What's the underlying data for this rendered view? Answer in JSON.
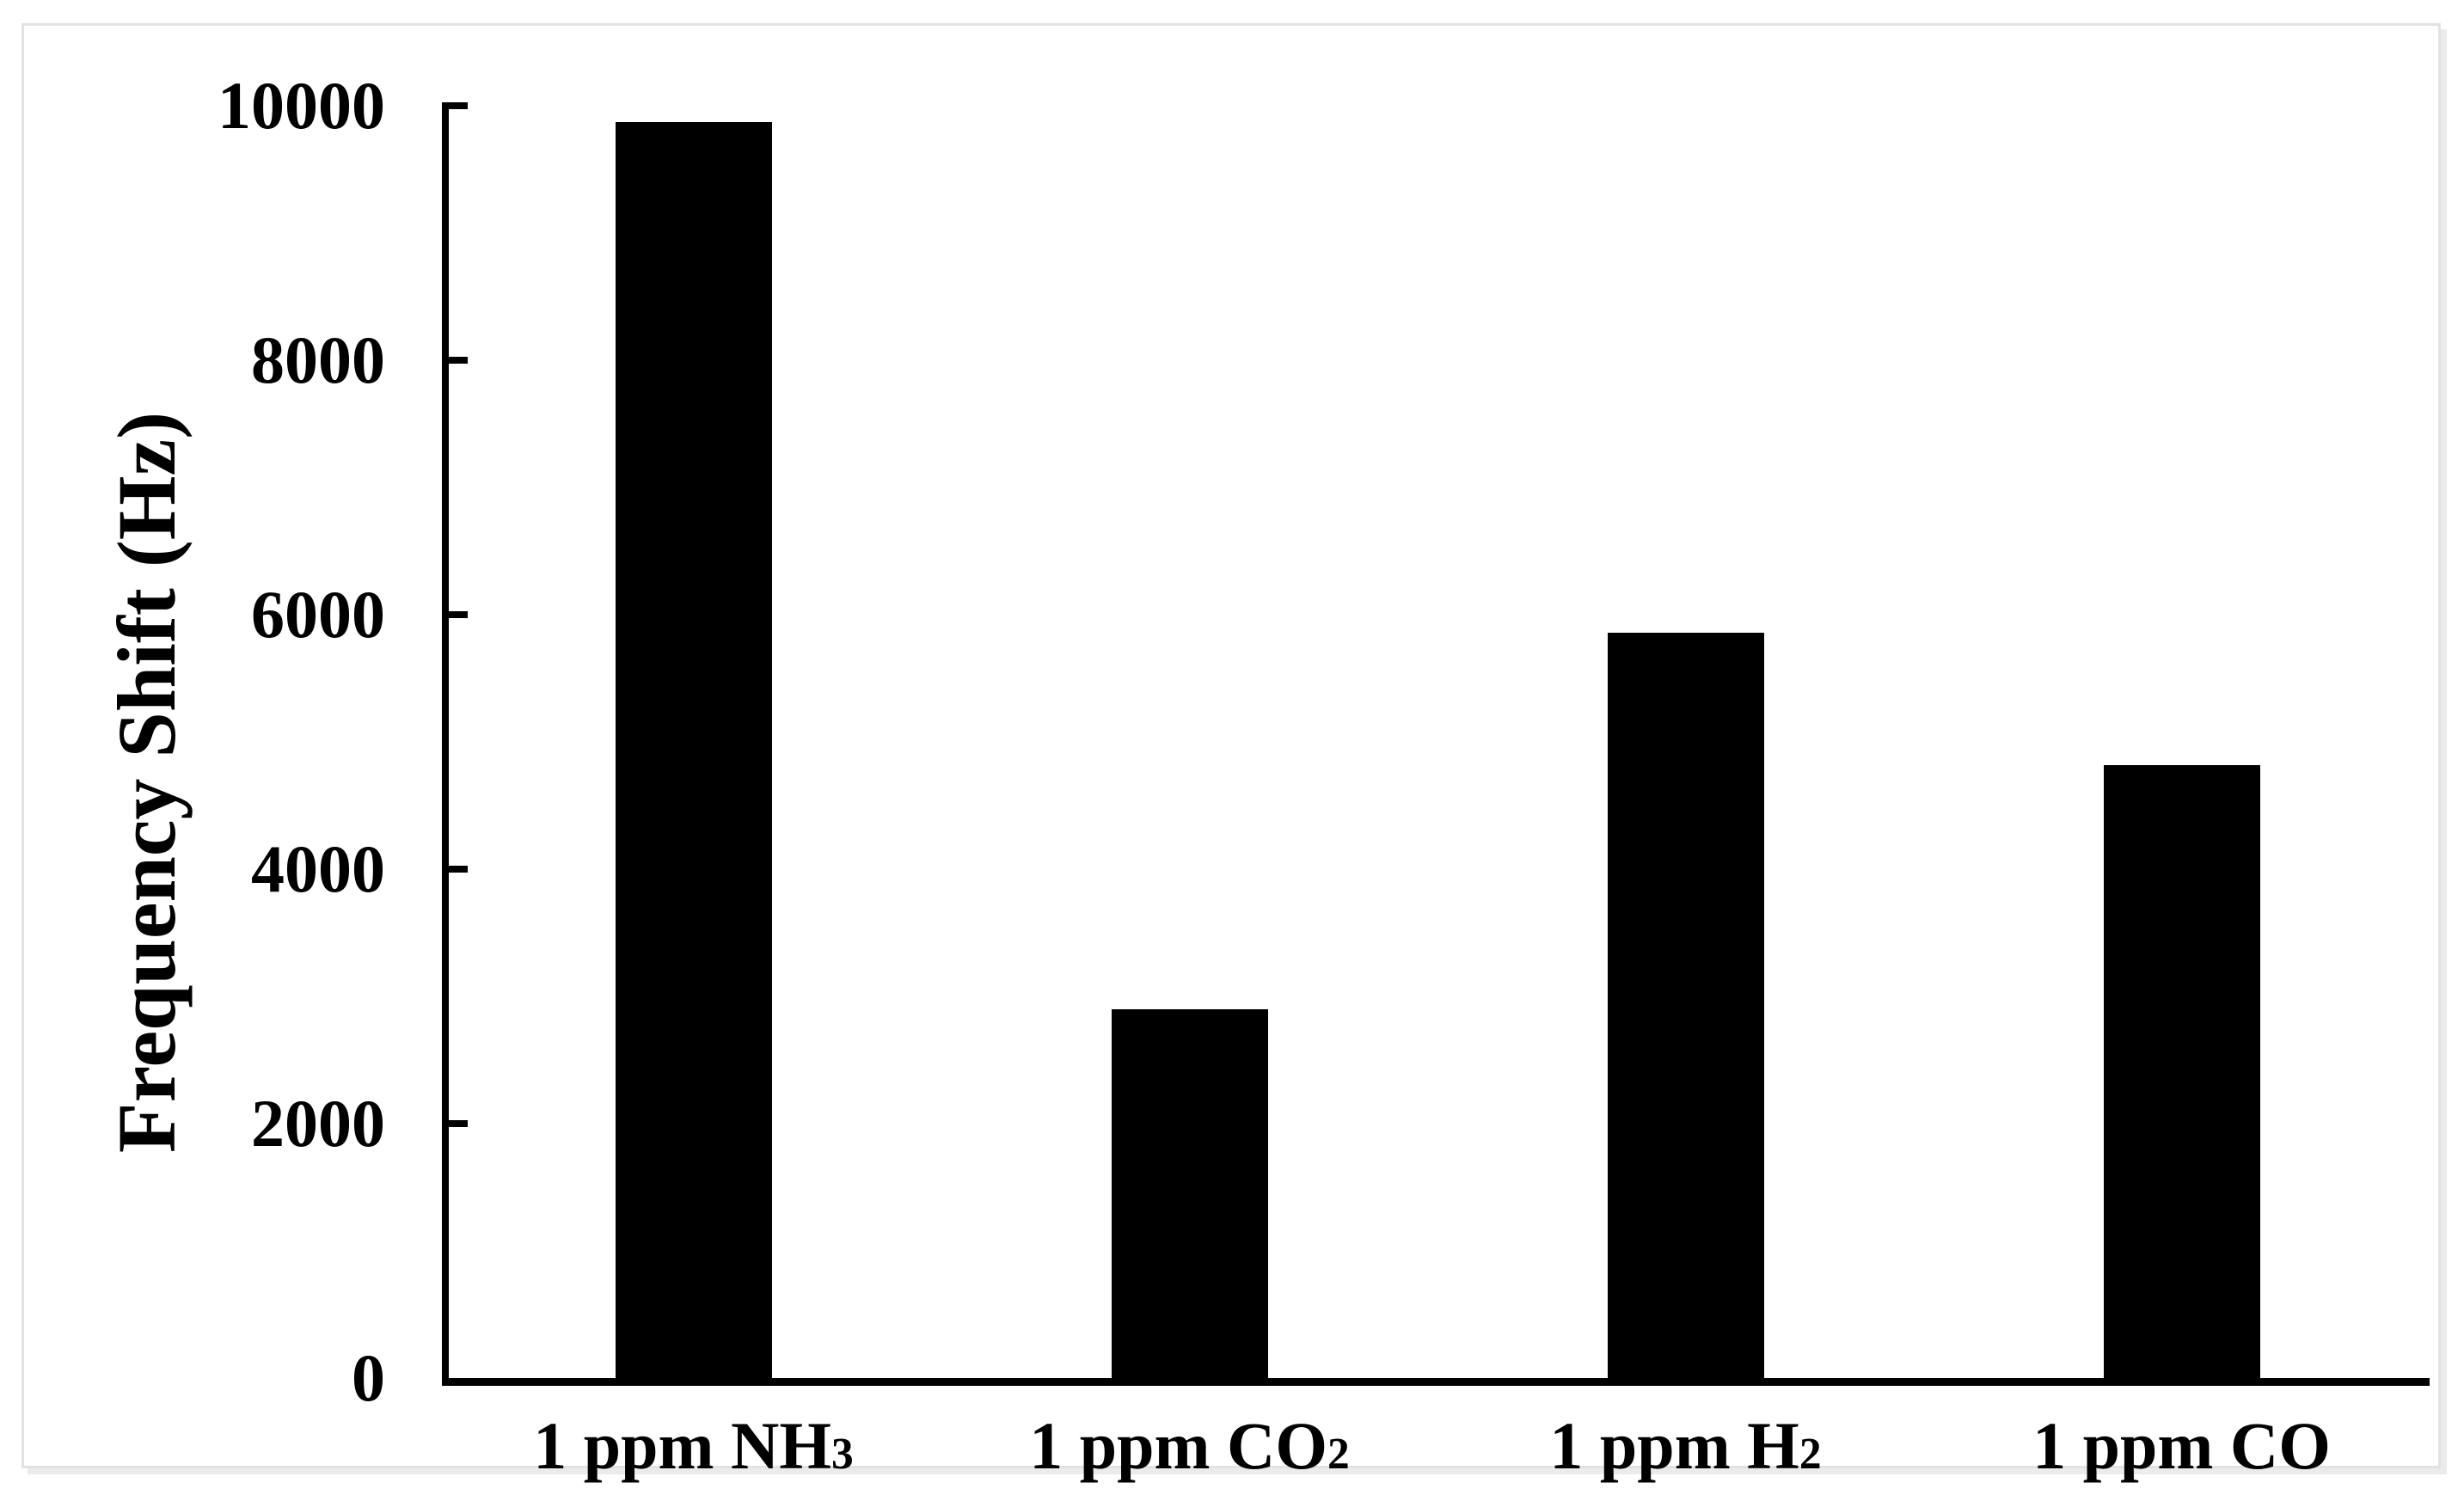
{
  "figure": {
    "background_color": "#ffffff",
    "frame_border_color": "#e2e2e2"
  },
  "chart_data": {
    "type": "bar",
    "title": "",
    "xlabel": "",
    "ylabel": "Frequency Shift (Hz)",
    "ylim": [
      0,
      10000
    ],
    "yticks": [
      0,
      2000,
      4000,
      6000,
      8000,
      10000
    ],
    "grid": false,
    "legend": false,
    "bar_color": "#000000",
    "axis_color": "#000000",
    "tick_style": "inside",
    "categories": [
      {
        "base": "1 ppm NH",
        "sub": "3",
        "full": "1 ppm NH3"
      },
      {
        "base": "1 ppm CO",
        "sub": "2",
        "full": "1 ppm CO2"
      },
      {
        "base": "1 ppm H",
        "sub": "2",
        "full": "1 ppm H2"
      },
      {
        "base": "1 ppm CO",
        "sub": "",
        "full": "1 ppm CO"
      }
    ],
    "series": [
      {
        "name": "Frequency Shift",
        "values": [
          9870,
          2900,
          5860,
          4820
        ]
      }
    ]
  }
}
